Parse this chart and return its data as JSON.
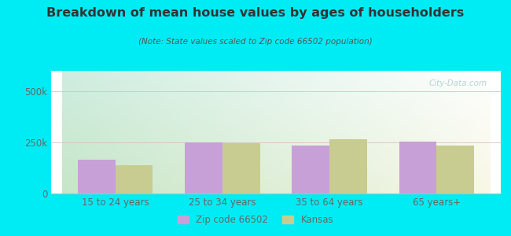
{
  "title": "Breakdown of mean house values by ages of householders",
  "subtitle": "(Note: State values scaled to Zip code 66502 population)",
  "categories": [
    "15 to 24 years",
    "25 to 34 years",
    "35 to 64 years",
    "65 years+"
  ],
  "zip_values": [
    165000,
    250000,
    235000,
    252000
  ],
  "kansas_values": [
    138000,
    245000,
    265000,
    234000
  ],
  "zip_color": "#c8a0d8",
  "kansas_color": "#c8cc90",
  "background_outer": "#00ecf4",
  "ylim": [
    0,
    600000
  ],
  "yticks": [
    0,
    250000,
    500000
  ],
  "ytick_labels": [
    "0",
    "250k",
    "500k"
  ],
  "legend_labels": [
    "Zip code 66502",
    "Kansas"
  ],
  "bar_width": 0.35,
  "watermark": "City-Data.com",
  "title_color": "#333333",
  "subtitle_color": "#555555",
  "tick_color": "#666666"
}
